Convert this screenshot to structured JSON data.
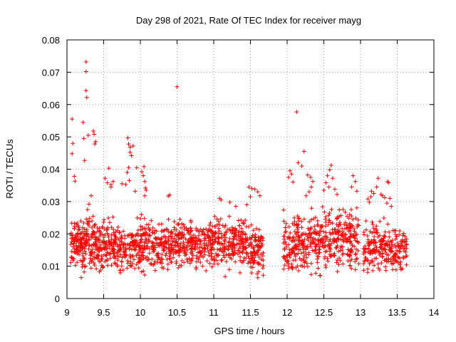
{
  "chart_data": {
    "type": "scatter",
    "title": "Day 298 of 2021, Rate Of TEC Index for receiver mayg",
    "xlabel": "GPS time / hours",
    "ylabel": "ROTI / TECUs",
    "xlim": [
      9,
      14
    ],
    "ylim": [
      0,
      0.08
    ],
    "x_ticks": [
      9,
      9.5,
      10,
      10.5,
      11,
      11.5,
      12,
      12.5,
      13,
      13.5,
      14
    ],
    "x_tick_labels": [
      "9",
      "9.5",
      "10",
      "10.5",
      "11",
      "11.5",
      "12",
      "12.5",
      "13",
      "13.5",
      "14"
    ],
    "y_ticks": [
      0,
      0.01,
      0.02,
      0.03,
      0.04,
      0.05,
      0.06,
      0.07,
      0.08
    ],
    "y_tick_labels": [
      "0",
      "0.01",
      "0.02",
      "0.03",
      "0.04",
      "0.05",
      "0.06",
      "0.07",
      "0.08"
    ],
    "grid": true,
    "marker": "+",
    "marker_color": "#ff0000",
    "series": [
      {
        "name": "ROTI",
        "points": [
          [
            9.07,
            0.0555
          ],
          [
            9.07,
            0.0448
          ],
          [
            9.08,
            0.048
          ],
          [
            9.1,
            0.0378
          ],
          [
            9.11,
            0.0363
          ],
          [
            9.22,
            0.0545
          ],
          [
            9.23,
            0.0495
          ],
          [
            9.24,
            0.0427
          ],
          [
            9.26,
            0.0732
          ],
          [
            9.26,
            0.0702
          ],
          [
            9.26,
            0.0643
          ],
          [
            9.27,
            0.0622
          ],
          [
            9.29,
            0.0505
          ],
          [
            9.36,
            0.0518
          ],
          [
            9.37,
            0.0508
          ],
          [
            9.39,
            0.0485
          ],
          [
            9.38,
            0.0478
          ],
          [
            9.33,
            0.0318
          ],
          [
            9.3,
            0.0292
          ],
          [
            9.28,
            0.0275
          ],
          [
            9.52,
            0.0372
          ],
          [
            9.55,
            0.0358
          ],
          [
            9.57,
            0.0403
          ],
          [
            9.6,
            0.0352
          ],
          [
            9.6,
            0.0345
          ],
          [
            9.63,
            0.0362
          ],
          [
            9.75,
            0.0355
          ],
          [
            9.8,
            0.0353
          ],
          [
            9.83,
            0.0497
          ],
          [
            9.84,
            0.0478
          ],
          [
            9.86,
            0.0468
          ],
          [
            9.86,
            0.0452
          ],
          [
            9.88,
            0.0442
          ],
          [
            9.9,
            0.0472
          ],
          [
            9.84,
            0.0405
          ],
          [
            9.82,
            0.039
          ],
          [
            9.85,
            0.0365
          ],
          [
            9.95,
            0.0405
          ],
          [
            9.93,
            0.0332
          ],
          [
            10.02,
            0.0392
          ],
          [
            10.04,
            0.038
          ],
          [
            10.05,
            0.0408
          ],
          [
            10.06,
            0.0362
          ],
          [
            10.07,
            0.0342
          ],
          [
            10.08,
            0.0335
          ],
          [
            10.06,
            0.0318
          ],
          [
            10.5,
            0.0655
          ],
          [
            10.4,
            0.032
          ],
          [
            10.38,
            0.0317
          ],
          [
            11.08,
            0.031
          ],
          [
            11.1,
            0.0305
          ],
          [
            11.22,
            0.0298
          ],
          [
            11.3,
            0.0285
          ],
          [
            11.48,
            0.0345
          ],
          [
            11.52,
            0.034
          ],
          [
            11.56,
            0.0338
          ],
          [
            11.6,
            0.033
          ],
          [
            11.63,
            0.0318
          ],
          [
            11.5,
            0.0315
          ],
          [
            11.45,
            0.029
          ],
          [
            12.13,
            0.0577
          ],
          [
            12.23,
            0.0455
          ],
          [
            12.15,
            0.042
          ],
          [
            12.2,
            0.041
          ],
          [
            12.04,
            0.0395
          ],
          [
            12.06,
            0.0385
          ],
          [
            12.02,
            0.0375
          ],
          [
            12.08,
            0.036
          ],
          [
            12.28,
            0.0382
          ],
          [
            12.32,
            0.0375
          ],
          [
            12.35,
            0.0362
          ],
          [
            12.33,
            0.0345
          ],
          [
            12.3,
            0.033
          ],
          [
            12.26,
            0.0318
          ],
          [
            12.6,
            0.0412
          ],
          [
            12.58,
            0.0398
          ],
          [
            12.55,
            0.038
          ],
          [
            12.62,
            0.0372
          ],
          [
            12.53,
            0.0358
          ],
          [
            12.57,
            0.0345
          ],
          [
            12.65,
            0.0338
          ],
          [
            12.5,
            0.0335
          ],
          [
            12.68,
            0.0322
          ],
          [
            12.9,
            0.038
          ],
          [
            12.93,
            0.0362
          ],
          [
            12.88,
            0.0345
          ],
          [
            12.95,
            0.0332
          ],
          [
            13.1,
            0.0308
          ],
          [
            13.12,
            0.0298
          ],
          [
            13.14,
            0.0315
          ],
          [
            13.15,
            0.0332
          ],
          [
            13.18,
            0.0325
          ],
          [
            13.22,
            0.0345
          ],
          [
            13.24,
            0.0372
          ],
          [
            13.28,
            0.0322
          ],
          [
            13.3,
            0.0318
          ],
          [
            13.33,
            0.0312
          ],
          [
            13.37,
            0.0362
          ],
          [
            13.38,
            0.0358
          ],
          [
            13.4,
            0.031
          ],
          [
            13.36,
            0.0295
          ],
          [
            13.42,
            0.0285
          ]
        ],
        "bands": [
          {
            "x": [
              9.05,
              9.45
            ],
            "y": [
              0.005,
              0.028
            ],
            "n": 220,
            "seed": 1
          },
          {
            "x": [
              9.45,
              9.95
            ],
            "y": [
              0.006,
              0.026
            ],
            "n": 220,
            "seed": 2
          },
          {
            "x": [
              9.95,
              10.45
            ],
            "y": [
              0.006,
              0.027
            ],
            "n": 220,
            "seed": 3
          },
          {
            "x": [
              10.45,
              10.95
            ],
            "y": [
              0.007,
              0.027
            ],
            "n": 220,
            "seed": 4
          },
          {
            "x": [
              10.95,
              11.45
            ],
            "y": [
              0.006,
              0.028
            ],
            "n": 220,
            "seed": 5
          },
          {
            "x": [
              11.45,
              11.68
            ],
            "y": [
              0.005,
              0.026
            ],
            "n": 100,
            "seed": 6
          },
          {
            "x": [
              11.95,
              12.45
            ],
            "y": [
              0.005,
              0.03
            ],
            "n": 220,
            "seed": 7
          },
          {
            "x": [
              12.45,
              12.98
            ],
            "y": [
              0.005,
              0.031
            ],
            "n": 230,
            "seed": 8
          },
          {
            "x": [
              13.04,
              13.63
            ],
            "y": [
              0.005,
              0.026
            ],
            "n": 230,
            "seed": 9
          }
        ]
      }
    ]
  }
}
